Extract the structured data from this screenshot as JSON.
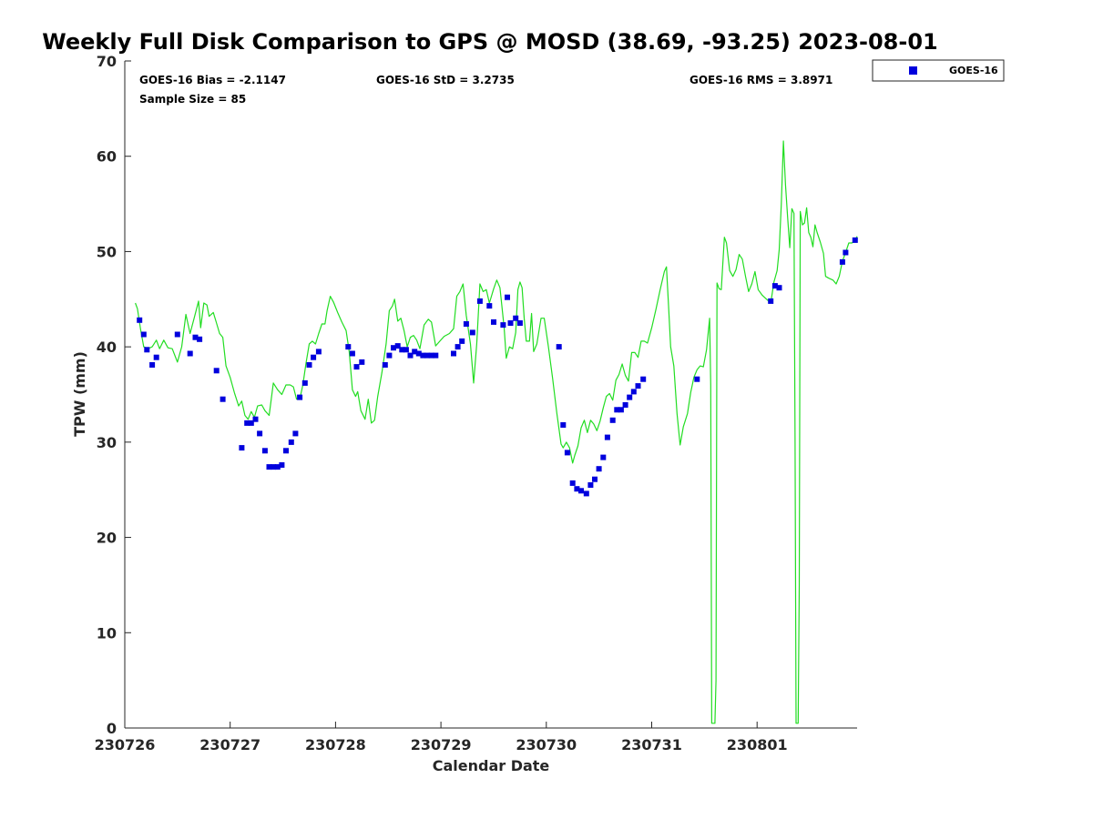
{
  "chart_data": {
    "type": "scatter",
    "title": "Weekly Full Disk Comparison to GPS @ MOSD (38.69, -93.25) 2023-08-01",
    "xlabel": "Calendar Date",
    "ylabel": "TPW (mm)",
    "ylim": [
      0,
      70
    ],
    "y_ticks": [
      0,
      10,
      20,
      30,
      40,
      50,
      60,
      70
    ],
    "x_tick_labels": [
      "230726",
      "230727",
      "230728",
      "230729",
      "230730",
      "230731",
      "230801"
    ],
    "xlim_days": [
      0,
      6.95
    ],
    "grid": false,
    "legend_position": "top-right-outside",
    "stats": {
      "bias": "GOES-16 Bias = -2.1147",
      "std": "GOES-16 StD = 3.2735",
      "rms": "GOES-16 RMS = 3.8971",
      "sample_size": "Sample Size = 85"
    },
    "colors": {
      "goes": "#0000dd",
      "gps": "#22dd22",
      "axis": "#262626"
    },
    "series": [
      {
        "name": "GOES-16",
        "marker": "square",
        "points": [
          [
            0.14,
            42.8
          ],
          [
            0.18,
            41.3
          ],
          [
            0.21,
            39.7
          ],
          [
            0.26,
            38.1
          ],
          [
            0.3,
            38.9
          ],
          [
            0.5,
            41.3
          ],
          [
            0.62,
            39.3
          ],
          [
            0.67,
            41.0
          ],
          [
            0.71,
            40.8
          ],
          [
            0.87,
            37.5
          ],
          [
            0.93,
            34.5
          ],
          [
            1.11,
            29.4
          ],
          [
            1.16,
            32.0
          ],
          [
            1.2,
            32.0
          ],
          [
            1.24,
            32.4
          ],
          [
            1.28,
            30.9
          ],
          [
            1.33,
            29.1
          ],
          [
            1.37,
            27.4
          ],
          [
            1.41,
            27.4
          ],
          [
            1.45,
            27.4
          ],
          [
            1.49,
            27.6
          ],
          [
            1.53,
            29.1
          ],
          [
            1.58,
            30.0
          ],
          [
            1.62,
            30.9
          ],
          [
            1.66,
            34.7
          ],
          [
            1.71,
            36.2
          ],
          [
            1.75,
            38.1
          ],
          [
            1.79,
            38.9
          ],
          [
            1.84,
            39.5
          ],
          [
            2.12,
            40.0
          ],
          [
            2.16,
            39.3
          ],
          [
            2.2,
            37.9
          ],
          [
            2.25,
            38.4
          ],
          [
            2.47,
            38.1
          ],
          [
            2.51,
            39.1
          ],
          [
            2.55,
            39.9
          ],
          [
            2.59,
            40.1
          ],
          [
            2.63,
            39.7
          ],
          [
            2.67,
            39.7
          ],
          [
            2.71,
            39.1
          ],
          [
            2.75,
            39.5
          ],
          [
            2.79,
            39.3
          ],
          [
            2.83,
            39.1
          ],
          [
            2.87,
            39.1
          ],
          [
            2.91,
            39.1
          ],
          [
            2.95,
            39.1
          ],
          [
            3.12,
            39.3
          ],
          [
            3.16,
            40.0
          ],
          [
            3.2,
            40.6
          ],
          [
            3.24,
            42.4
          ],
          [
            3.3,
            41.5
          ],
          [
            3.37,
            44.8
          ],
          [
            3.46,
            44.3
          ],
          [
            3.5,
            42.6
          ],
          [
            3.59,
            42.3
          ],
          [
            3.63,
            45.2
          ],
          [
            3.66,
            42.5
          ],
          [
            3.71,
            43.0
          ],
          [
            3.75,
            42.5
          ],
          [
            4.12,
            40.0
          ],
          [
            4.16,
            31.8
          ],
          [
            4.2,
            28.9
          ],
          [
            4.25,
            25.7
          ],
          [
            4.29,
            25.1
          ],
          [
            4.33,
            24.9
          ],
          [
            4.38,
            24.6
          ],
          [
            4.42,
            25.5
          ],
          [
            4.46,
            26.1
          ],
          [
            4.5,
            27.2
          ],
          [
            4.54,
            28.4
          ],
          [
            4.58,
            30.5
          ],
          [
            4.63,
            32.3
          ],
          [
            4.67,
            33.4
          ],
          [
            4.71,
            33.4
          ],
          [
            4.75,
            33.9
          ],
          [
            4.79,
            34.7
          ],
          [
            4.83,
            35.3
          ],
          [
            4.87,
            35.9
          ],
          [
            4.92,
            36.6
          ],
          [
            5.43,
            36.6
          ],
          [
            6.13,
            44.8
          ],
          [
            6.17,
            46.4
          ],
          [
            6.21,
            46.2
          ],
          [
            6.81,
            48.9
          ],
          [
            6.84,
            49.9
          ],
          [
            6.93,
            51.2
          ]
        ]
      },
      {
        "name": "",
        "marker": "line",
        "points": [
          [
            0.1,
            44.6
          ],
          [
            0.12,
            44.0
          ],
          [
            0.15,
            41.8
          ],
          [
            0.18,
            40.0
          ],
          [
            0.22,
            39.8
          ],
          [
            0.26,
            40.0
          ],
          [
            0.3,
            40.7
          ],
          [
            0.33,
            39.8
          ],
          [
            0.37,
            40.7
          ],
          [
            0.41,
            39.9
          ],
          [
            0.45,
            39.8
          ],
          [
            0.5,
            38.4
          ],
          [
            0.54,
            40.0
          ],
          [
            0.58,
            43.4
          ],
          [
            0.62,
            41.4
          ],
          [
            0.66,
            43.1
          ],
          [
            0.7,
            44.8
          ],
          [
            0.72,
            42.0
          ],
          [
            0.75,
            44.6
          ],
          [
            0.78,
            44.4
          ],
          [
            0.8,
            43.2
          ],
          [
            0.84,
            43.6
          ],
          [
            0.87,
            42.5
          ],
          [
            0.9,
            41.4
          ],
          [
            0.93,
            41.0
          ],
          [
            0.96,
            38.0
          ],
          [
            1.0,
            36.8
          ],
          [
            1.04,
            35.2
          ],
          [
            1.08,
            33.8
          ],
          [
            1.11,
            34.3
          ],
          [
            1.14,
            32.8
          ],
          [
            1.17,
            32.4
          ],
          [
            1.2,
            33.2
          ],
          [
            1.23,
            32.6
          ],
          [
            1.26,
            33.8
          ],
          [
            1.3,
            33.9
          ],
          [
            1.33,
            33.3
          ],
          [
            1.37,
            32.8
          ],
          [
            1.41,
            36.2
          ],
          [
            1.45,
            35.5
          ],
          [
            1.49,
            35.0
          ],
          [
            1.53,
            36.0
          ],
          [
            1.57,
            36.0
          ],
          [
            1.6,
            35.8
          ],
          [
            1.63,
            34.5
          ],
          [
            1.66,
            34.5
          ],
          [
            1.69,
            36.0
          ],
          [
            1.72,
            38.3
          ],
          [
            1.75,
            40.3
          ],
          [
            1.78,
            40.6
          ],
          [
            1.81,
            40.3
          ],
          [
            1.84,
            41.4
          ],
          [
            1.87,
            42.4
          ],
          [
            1.9,
            42.4
          ],
          [
            1.92,
            43.8
          ],
          [
            1.95,
            45.3
          ],
          [
            1.98,
            44.7
          ],
          [
            2.02,
            43.6
          ],
          [
            2.06,
            42.6
          ],
          [
            2.1,
            41.7
          ],
          [
            2.13,
            39.5
          ],
          [
            2.16,
            35.5
          ],
          [
            2.19,
            34.8
          ],
          [
            2.21,
            35.3
          ],
          [
            2.24,
            33.3
          ],
          [
            2.28,
            32.4
          ],
          [
            2.31,
            34.5
          ],
          [
            2.34,
            32.0
          ],
          [
            2.37,
            32.3
          ],
          [
            2.4,
            34.8
          ],
          [
            2.44,
            37.3
          ],
          [
            2.48,
            40.3
          ],
          [
            2.51,
            43.8
          ],
          [
            2.54,
            44.3
          ],
          [
            2.56,
            45.0
          ],
          [
            2.59,
            42.7
          ],
          [
            2.62,
            43.0
          ],
          [
            2.65,
            41.7
          ],
          [
            2.68,
            40.0
          ],
          [
            2.71,
            41.0
          ],
          [
            2.74,
            41.2
          ],
          [
            2.77,
            40.7
          ],
          [
            2.8,
            39.8
          ],
          [
            2.84,
            42.3
          ],
          [
            2.88,
            42.9
          ],
          [
            2.91,
            42.6
          ],
          [
            2.95,
            40.1
          ],
          [
            2.99,
            40.6
          ],
          [
            3.03,
            41.1
          ],
          [
            3.08,
            41.4
          ],
          [
            3.12,
            41.9
          ],
          [
            3.15,
            45.3
          ],
          [
            3.18,
            45.8
          ],
          [
            3.21,
            46.6
          ],
          [
            3.24,
            43.3
          ],
          [
            3.28,
            40.3
          ],
          [
            3.31,
            36.2
          ],
          [
            3.34,
            40.3
          ],
          [
            3.37,
            46.6
          ],
          [
            3.4,
            45.8
          ],
          [
            3.43,
            46.0
          ],
          [
            3.46,
            44.6
          ],
          [
            3.5,
            46.1
          ],
          [
            3.53,
            47.0
          ],
          [
            3.56,
            46.2
          ],
          [
            3.6,
            42.0
          ],
          [
            3.62,
            38.8
          ],
          [
            3.65,
            40.0
          ],
          [
            3.68,
            39.8
          ],
          [
            3.71,
            41.5
          ],
          [
            3.73,
            46.0
          ],
          [
            3.75,
            46.8
          ],
          [
            3.77,
            46.2
          ],
          [
            3.79,
            43.0
          ],
          [
            3.81,
            40.6
          ],
          [
            3.84,
            40.6
          ],
          [
            3.86,
            43.5
          ],
          [
            3.88,
            39.5
          ],
          [
            3.91,
            40.3
          ],
          [
            3.95,
            43.0
          ],
          [
            3.98,
            43.0
          ],
          [
            4.02,
            40.0
          ],
          [
            4.06,
            36.7
          ],
          [
            4.1,
            33.0
          ],
          [
            4.14,
            29.8
          ],
          [
            4.16,
            29.4
          ],
          [
            4.19,
            30.0
          ],
          [
            4.22,
            29.4
          ],
          [
            4.25,
            27.8
          ],
          [
            4.27,
            28.6
          ],
          [
            4.3,
            29.6
          ],
          [
            4.33,
            31.5
          ],
          [
            4.36,
            32.3
          ],
          [
            4.39,
            31.0
          ],
          [
            4.42,
            32.3
          ],
          [
            4.45,
            31.9
          ],
          [
            4.48,
            31.2
          ],
          [
            4.51,
            32.2
          ],
          [
            4.54,
            33.6
          ],
          [
            4.57,
            34.8
          ],
          [
            4.6,
            35.1
          ],
          [
            4.63,
            34.4
          ],
          [
            4.66,
            36.5
          ],
          [
            4.69,
            37.1
          ],
          [
            4.72,
            38.2
          ],
          [
            4.75,
            37.0
          ],
          [
            4.78,
            36.4
          ],
          [
            4.81,
            39.4
          ],
          [
            4.84,
            39.4
          ],
          [
            4.87,
            38.9
          ],
          [
            4.9,
            40.6
          ],
          [
            4.93,
            40.6
          ],
          [
            4.96,
            40.4
          ],
          [
            5.0,
            42.0
          ],
          [
            5.04,
            43.9
          ],
          [
            5.08,
            46.0
          ],
          [
            5.12,
            47.9
          ],
          [
            5.14,
            48.4
          ],
          [
            5.16,
            44.3
          ],
          [
            5.18,
            40.0
          ],
          [
            5.21,
            38.0
          ],
          [
            5.24,
            33.0
          ],
          [
            5.27,
            29.7
          ],
          [
            5.3,
            31.6
          ],
          [
            5.34,
            33.0
          ],
          [
            5.37,
            35.2
          ],
          [
            5.4,
            36.8
          ],
          [
            5.43,
            37.6
          ],
          [
            5.46,
            38.0
          ],
          [
            5.49,
            37.9
          ],
          [
            5.52,
            39.7
          ],
          [
            5.55,
            43.0
          ],
          [
            5.56,
            36.0
          ],
          [
            5.57,
            0.5
          ],
          [
            5.6,
            0.5
          ],
          [
            5.61,
            5.0
          ],
          [
            5.62,
            46.7
          ],
          [
            5.64,
            46.1
          ],
          [
            5.66,
            46.0
          ],
          [
            5.69,
            51.5
          ],
          [
            5.71,
            50.9
          ],
          [
            5.74,
            48.0
          ],
          [
            5.77,
            47.4
          ],
          [
            5.8,
            48.1
          ],
          [
            5.83,
            49.7
          ],
          [
            5.86,
            49.2
          ],
          [
            5.89,
            47.4
          ],
          [
            5.92,
            45.8
          ],
          [
            5.95,
            46.6
          ],
          [
            5.98,
            47.9
          ],
          [
            6.01,
            46.0
          ],
          [
            6.05,
            45.4
          ],
          [
            6.09,
            45.0
          ],
          [
            6.13,
            44.6
          ],
          [
            6.16,
            46.8
          ],
          [
            6.19,
            48.0
          ],
          [
            6.21,
            50.2
          ],
          [
            6.23,
            55.0
          ],
          [
            6.25,
            61.6
          ],
          [
            6.27,
            57.0
          ],
          [
            6.29,
            53.5
          ],
          [
            6.31,
            50.4
          ],
          [
            6.33,
            54.5
          ],
          [
            6.35,
            54.0
          ],
          [
            6.36,
            30.0
          ],
          [
            6.37,
            0.5
          ],
          [
            6.39,
            0.5
          ],
          [
            6.4,
            15.0
          ],
          [
            6.41,
            54.2
          ],
          [
            6.43,
            52.8
          ],
          [
            6.45,
            53.0
          ],
          [
            6.47,
            54.6
          ],
          [
            6.49,
            52.0
          ],
          [
            6.51,
            51.5
          ],
          [
            6.53,
            50.5
          ],
          [
            6.55,
            52.8
          ],
          [
            6.57,
            52.0
          ],
          [
            6.6,
            51.0
          ],
          [
            6.63,
            49.8
          ],
          [
            6.65,
            47.4
          ],
          [
            6.68,
            47.2
          ],
          [
            6.72,
            47.0
          ],
          [
            6.75,
            46.6
          ],
          [
            6.78,
            47.4
          ],
          [
            6.81,
            49.0
          ],
          [
            6.84,
            49.9
          ],
          [
            6.87,
            50.9
          ],
          [
            6.9,
            50.9
          ],
          [
            6.93,
            51.2
          ],
          [
            6.95,
            51.6
          ]
        ]
      }
    ]
  }
}
